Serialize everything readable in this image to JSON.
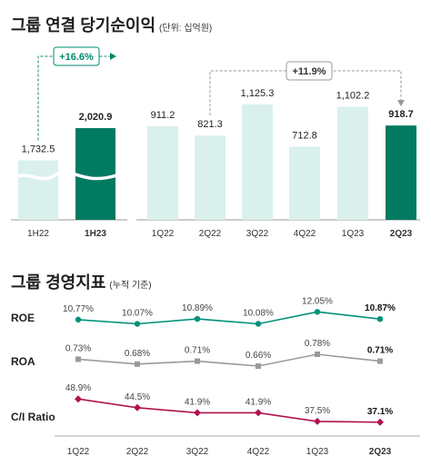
{
  "chart_data": [
    {
      "type": "bar",
      "title": "그룹 연결 당기순이익",
      "unit_note": "(단위: 십억원)",
      "panels": [
        {
          "categories": [
            "1H22",
            "1H23"
          ],
          "values": [
            1732.5,
            2020.9
          ],
          "labels": [
            "1,732.5",
            "2,020.9"
          ],
          "growth_label": "+16.6%",
          "axis_break": true,
          "highlight_last": true
        },
        {
          "categories": [
            "1Q22",
            "2Q22",
            "3Q22",
            "4Q22",
            "1Q23",
            "2Q23"
          ],
          "values": [
            911.2,
            821.3,
            1125.3,
            712.8,
            1102.2,
            918.7
          ],
          "labels": [
            "911.2",
            "821.3",
            "1,125.3",
            "712.8",
            "1,102.2",
            "918.7"
          ],
          "growth_label": "+11.9%",
          "highlight_last": true
        }
      ],
      "colors": {
        "normal": "#daf0ec",
        "highlight": "#007a61",
        "growth": "#008a6c"
      }
    },
    {
      "type": "line",
      "title": "그룹 경영지표",
      "unit_note": "(누적 기준)",
      "categories": [
        "1Q22",
        "2Q22",
        "3Q22",
        "4Q22",
        "1Q23",
        "2Q23"
      ],
      "series": [
        {
          "name": "ROE",
          "values": [
            10.77,
            10.07,
            10.89,
            10.08,
            12.05,
            10.87
          ],
          "labels": [
            "10.77%",
            "10.07%",
            "10.89%",
            "10.08%",
            "12.05%",
            "10.87%"
          ],
          "color": "#00917a"
        },
        {
          "name": "ROA",
          "values": [
            0.73,
            0.68,
            0.71,
            0.66,
            0.78,
            0.71
          ],
          "labels": [
            "0.73%",
            "0.68%",
            "0.71%",
            "0.66%",
            "0.78%",
            "0.71%"
          ],
          "color": "#9a9a9a"
        },
        {
          "name": "C/I Ratio",
          "values": [
            48.9,
            44.5,
            41.9,
            41.9,
            37.5,
            37.1
          ],
          "labels": [
            "48.9%",
            "44.5%",
            "41.9%",
            "41.9%",
            "37.5%",
            "37.1%"
          ],
          "color": "#b0124e"
        }
      ]
    }
  ]
}
